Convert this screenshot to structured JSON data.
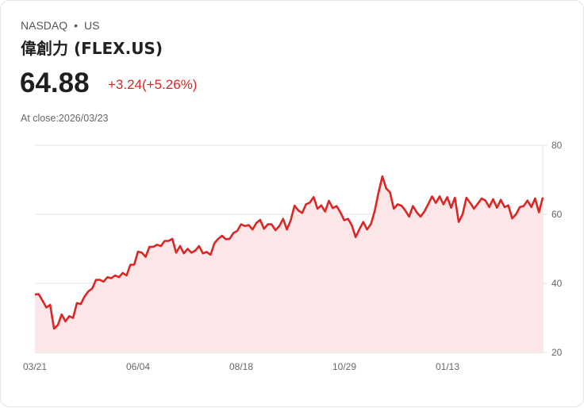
{
  "header": {
    "exchange": "NASDAQ",
    "separator": "•",
    "region": "US",
    "name": "偉創力 (FLEX.US)",
    "price": "64.88",
    "change": "+3.24(+5.26%)",
    "close_label": "At close:2026/03/23"
  },
  "colors": {
    "line": "#dc2626",
    "fill": "#fbe7e7",
    "change": "#dc2626",
    "grid": "#e2e2e2"
  },
  "chart_data": {
    "type": "area",
    "title": "",
    "ylim": [
      20,
      80
    ],
    "y_ticks": [
      "80",
      "60",
      "40",
      "20"
    ],
    "x_ticks": [
      "03/21",
      "06/04",
      "08/18",
      "10/29",
      "01/13"
    ],
    "grid": true,
    "values": [
      36.8,
      36.9,
      35,
      33,
      33.8,
      26.9,
      27.9,
      31,
      29,
      30.5,
      30,
      34.3,
      34,
      36.2,
      37.7,
      38.5,
      41,
      41,
      40.5,
      41.8,
      41.5,
      42.3,
      41.8,
      43,
      42.3,
      45.4,
      45.4,
      49.2,
      48.9,
      47.7,
      50.6,
      50.6,
      51.2,
      50.8,
      52.3,
      52.3,
      52.9,
      48.9,
      50.8,
      48.7,
      50,
      48.9,
      49.5,
      50.8,
      48.7,
      49.1,
      48.3,
      51.6,
      52.9,
      53.8,
      52.8,
      52.9,
      54.6,
      55.2,
      57.1,
      56.6,
      56.9,
      55.6,
      57.5,
      58.4,
      55.8,
      57.1,
      57.1,
      55.4,
      56.6,
      58.7,
      55.6,
      58.3,
      62.5,
      61.1,
      60.4,
      62.9,
      63.4,
      65,
      61.6,
      62.6,
      60.8,
      63.9,
      61.8,
      62.4,
      60.6,
      58.3,
      58.7,
      56.8,
      53.4,
      55.7,
      57.8,
      55.6,
      57.2,
      61,
      66.4,
      71,
      67.5,
      66.4,
      61.6,
      62.9,
      62.5,
      61.1,
      59.3,
      62.4,
      60.6,
      59.3,
      60.8,
      62.9,
      65.2,
      63.3,
      65.2,
      62.9,
      65,
      61.9,
      64.8,
      57.8,
      59.9,
      64.8,
      63.3,
      61.6,
      63.1,
      64.6,
      64,
      62.1,
      64.4,
      61.9,
      64.2,
      62.1,
      62.6,
      58.8,
      60,
      62.1,
      62.4,
      64,
      62.1,
      64.6,
      60.6,
      64.88
    ]
  }
}
